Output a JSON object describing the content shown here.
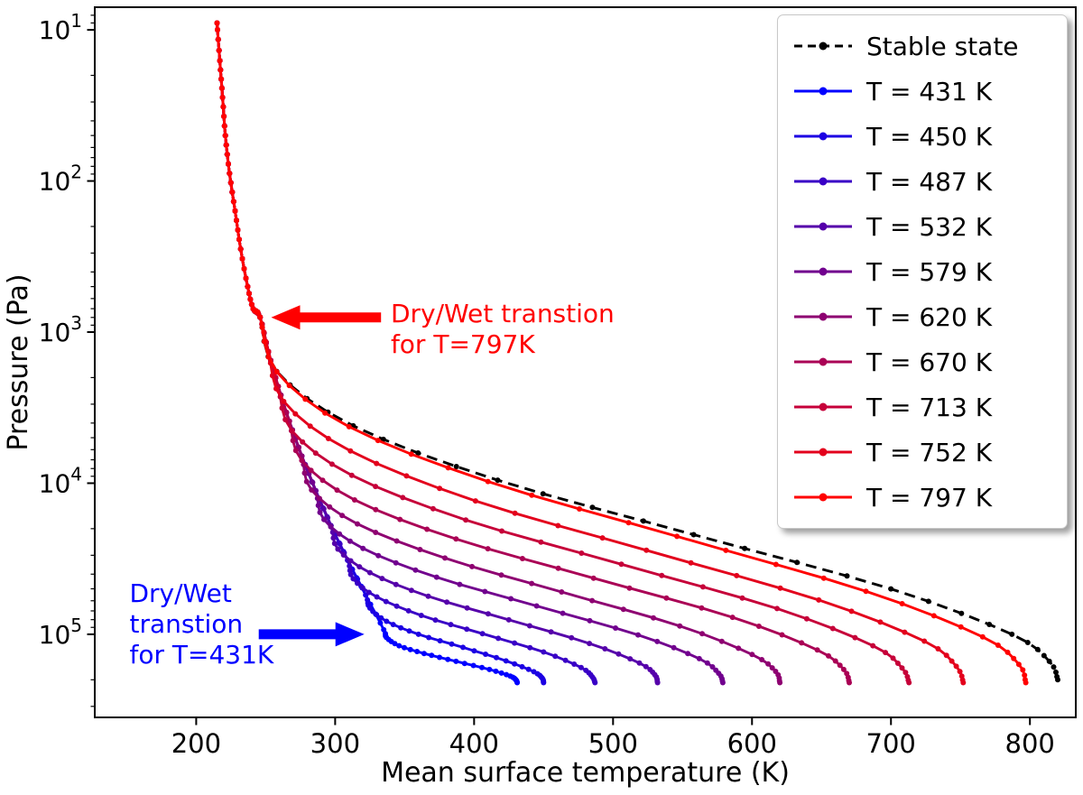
{
  "chart_data": {
    "type": "line",
    "title": "",
    "xlabel": "Mean surface temperature (K)",
    "ylabel": "Pressure (Pa)",
    "grid": false,
    "legend_position": "upper right",
    "x_axis": {
      "min": 127,
      "max": 833,
      "ticks": [
        200,
        300,
        400,
        500,
        600,
        700,
        800
      ]
    },
    "y_axis": {
      "scale": "log",
      "inverted": true,
      "min_pa": 7.1,
      "max_pa": 355000,
      "tick_base": "10",
      "tick_exponents": [
        1,
        2,
        3,
        4,
        5
      ]
    },
    "shared_low_pressure_branch_points": [
      [
        215,
        9
      ],
      [
        217,
        16
      ],
      [
        219,
        28
      ],
      [
        221,
        50
      ],
      [
        224,
        89
      ],
      [
        228,
        158
      ],
      [
        232,
        282
      ],
      [
        237,
        500
      ],
      [
        241,
        700
      ],
      [
        246,
        800
      ],
      [
        252,
        1350
      ],
      [
        259,
        2290
      ],
      [
        267,
        3890
      ],
      [
        276,
        6610
      ],
      [
        286,
        11200
      ],
      [
        297,
        19100
      ],
      [
        309,
        32400
      ],
      [
        322,
        55000
      ],
      [
        335,
        93300
      ]
    ],
    "series": [
      {
        "label": "Stable state",
        "color": "#000000",
        "line_style": "dashed",
        "marker": "dot",
        "points": [
          [
            246,
            794
          ],
          [
            258,
            1820
          ],
          [
            313,
            4170
          ],
          [
            417,
            9550
          ],
          [
            558,
            21900
          ],
          [
            700,
            50100
          ],
          [
            787,
            100000
          ],
          [
            814,
            151000
          ],
          [
            820,
            200000
          ]
        ]
      },
      {
        "label": "T = 431 K",
        "color": "#0000ff",
        "line_style": "solid",
        "marker": "dot",
        "points": [
          [
            335,
            93300
          ],
          [
            337,
            105000
          ],
          [
            346,
            119000
          ],
          [
            364,
            134000
          ],
          [
            387,
            151000
          ],
          [
            411,
            171000
          ],
          [
            426,
            189000
          ],
          [
            430,
            200000
          ],
          [
            431,
            209000
          ]
        ]
      },
      {
        "label": "T = 450 K",
        "color": "#1c00e3",
        "line_style": "solid",
        "marker": "dot",
        "points": [
          [
            322,
            55000
          ],
          [
            325,
            67100
          ],
          [
            337,
            82000
          ],
          [
            360,
            100000
          ],
          [
            392,
            122000
          ],
          [
            423,
            150000
          ],
          [
            443,
            177000
          ],
          [
            449,
            195000
          ],
          [
            450,
            209000
          ]
        ]
      },
      {
        "label": "T = 487 K",
        "color": "#3900c6",
        "line_style": "solid",
        "marker": "dot",
        "points": [
          [
            309,
            32400
          ],
          [
            313,
            42900
          ],
          [
            330,
            56600
          ],
          [
            362,
            75000
          ],
          [
            406,
            99100
          ],
          [
            450,
            131000
          ],
          [
            477,
            166000
          ],
          [
            485,
            191000
          ],
          [
            487,
            209000
          ]
        ]
      },
      {
        "label": "T = 532 K",
        "color": "#5500aa",
        "line_style": "solid",
        "marker": "dot",
        "points": [
          [
            297,
            19100
          ],
          [
            302,
            27300
          ],
          [
            325,
            39100
          ],
          [
            367,
            56000
          ],
          [
            425,
            80200
          ],
          [
            483,
            115000
          ],
          [
            519,
            155000
          ],
          [
            530,
            185000
          ],
          [
            532,
            209000
          ]
        ]
      },
      {
        "label": "T = 579 K",
        "color": "#71008e",
        "line_style": "solid",
        "marker": "dot",
        "points": [
          [
            286,
            11200
          ],
          [
            292,
            17400
          ],
          [
            320,
            27000
          ],
          [
            373,
            41900
          ],
          [
            445,
            64900
          ],
          [
            518,
            101000
          ],
          [
            562,
            145000
          ],
          [
            576,
            181000
          ],
          [
            579,
            209000
          ]
        ]
      },
      {
        "label": "T = 620 K",
        "color": "#8e0071",
        "line_style": "solid",
        "marker": "dot",
        "points": [
          [
            276,
            6610
          ],
          [
            283,
            11100
          ],
          [
            316,
            18600
          ],
          [
            379,
            31300
          ],
          [
            463,
            52500
          ],
          [
            548,
            88100
          ],
          [
            600,
            136000
          ],
          [
            617,
            176000
          ],
          [
            620,
            209000
          ]
        ]
      },
      {
        "label": "T = 670 K",
        "color": "#aa0055",
        "line_style": "solid",
        "marker": "dot",
        "points": [
          [
            267,
            3890
          ],
          [
            276,
            7080
          ],
          [
            314,
            12900
          ],
          [
            387,
            23400
          ],
          [
            486,
            42500
          ],
          [
            586,
            77200
          ],
          [
            647,
            127000
          ],
          [
            666,
            171000
          ],
          [
            670,
            209000
          ]
        ]
      },
      {
        "label": "T = 713 K",
        "color": "#c60039",
        "line_style": "solid",
        "marker": "dot",
        "points": [
          [
            259,
            2290
          ],
          [
            269,
            4510
          ],
          [
            312,
            8870
          ],
          [
            394,
            17500
          ],
          [
            506,
            34400
          ],
          [
            618,
            67600
          ],
          [
            687,
            119000
          ],
          [
            708,
            167000
          ],
          [
            713,
            209000
          ]
        ]
      },
      {
        "label": "T = 752 K",
        "color": "#e3001c",
        "line_style": "solid",
        "marker": "dot",
        "points": [
          [
            252,
            1350
          ],
          [
            263,
            2880
          ],
          [
            311,
            6120
          ],
          [
            401,
            13100
          ],
          [
            524,
            27800
          ],
          [
            648,
            59300
          ],
          [
            724,
            111000
          ],
          [
            747,
            163000
          ],
          [
            752,
            209000
          ]
        ]
      },
      {
        "label": "T = 797 K",
        "color": "#ff0000",
        "line_style": "solid",
        "marker": "dot",
        "points": [
          [
            246,
            794
          ],
          [
            258,
            1830
          ],
          [
            310,
            4230
          ],
          [
            410,
            9750
          ],
          [
            546,
            22500
          ],
          [
            682,
            51900
          ],
          [
            766,
            104000
          ],
          [
            792,
            158000
          ],
          [
            797,
            209000
          ]
        ]
      }
    ],
    "annotations": [
      {
        "id": "dry-wet-797",
        "lines": [
          "Dry/Wet transtion",
          "for T=797K"
        ],
        "color": "#ff0000",
        "text_anchor_data": [
          340,
          860
        ],
        "arrow_from_data": [
          333,
          800
        ],
        "arrow_to_data": [
          254,
          800
        ]
      },
      {
        "id": "dry-wet-431",
        "lines": [
          "Dry/Wet",
          "transtion",
          "for T=431K"
        ],
        "color": "#0000ff",
        "text_anchor_data": [
          152,
          61000
        ],
        "arrow_from_data": [
          245,
          100000
        ],
        "arrow_to_data": [
          321,
          100000
        ]
      }
    ]
  }
}
